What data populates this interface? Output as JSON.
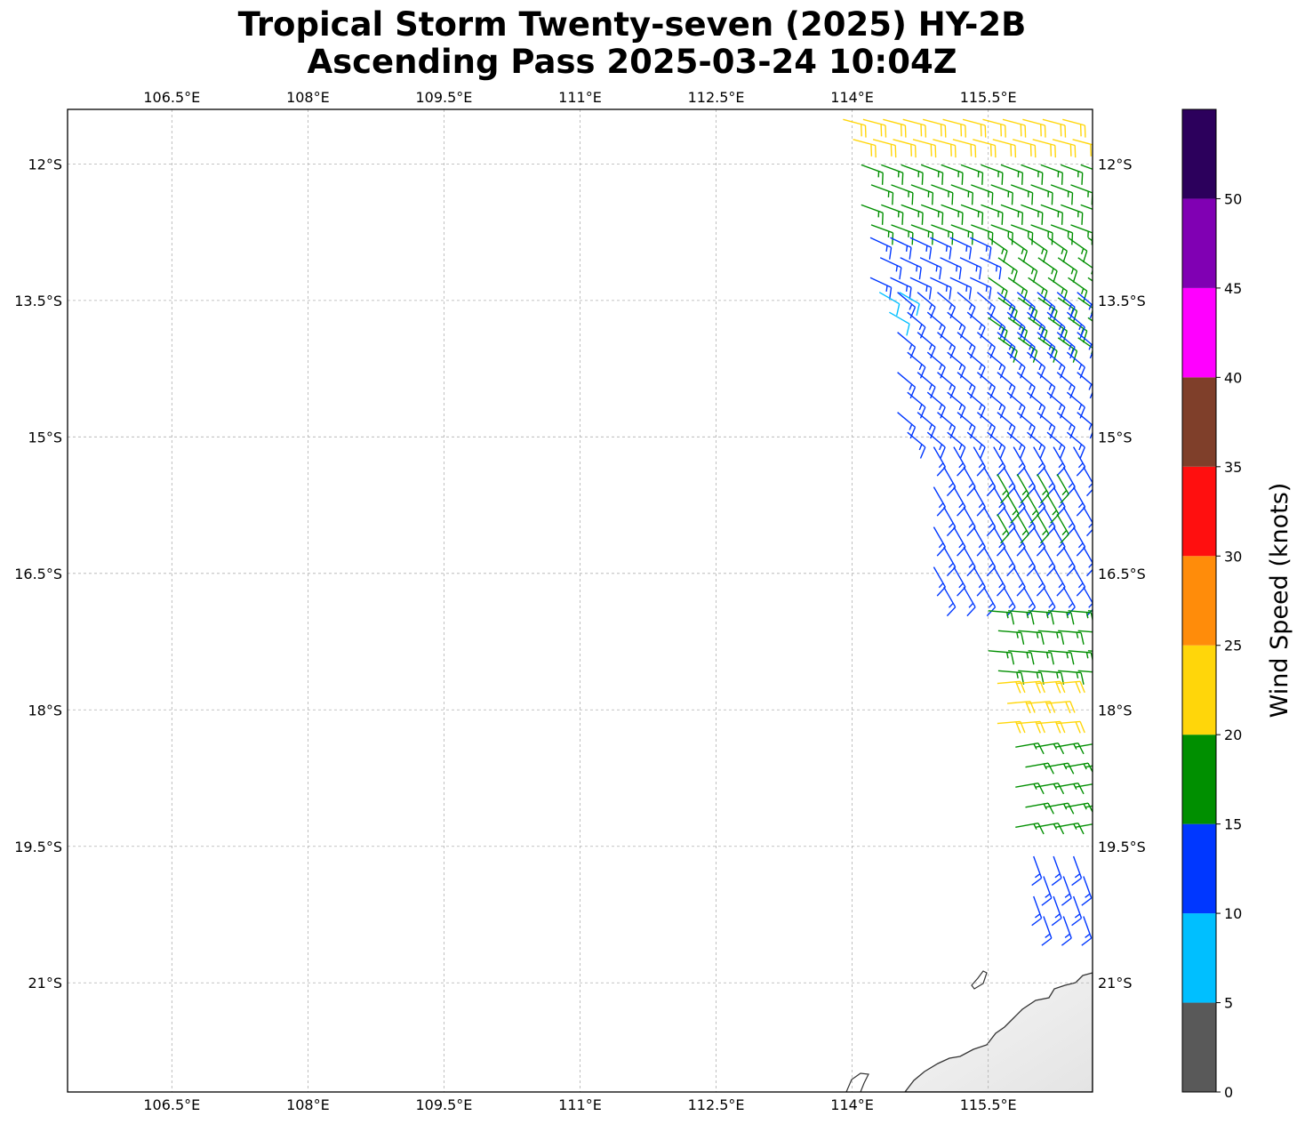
{
  "chart_data": {
    "type": "map-wind-barbs",
    "title": "Tropical Storm Twenty-seven (2025) HY-2B",
    "subtitle": "Ascending Pass 2025-03-24 10:04Z",
    "lon_range": [
      105.35,
      116.65
    ],
    "lat_range": [
      -22.2,
      -11.4
    ],
    "lon_ticks": [
      106.5,
      108,
      109.5,
      111,
      112.5,
      114,
      115.5
    ],
    "lon_tick_labels": [
      "106.5°E",
      "108°E",
      "109.5°E",
      "111°E",
      "112.5°E",
      "114°E",
      "115.5°E"
    ],
    "lat_ticks": [
      -12,
      -13.5,
      -15,
      -16.5,
      -18,
      -19.5,
      -21
    ],
    "lat_tick_labels": [
      "12°S",
      "13.5°S",
      "15°S",
      "16.5°S",
      "18°S",
      "19.5°S",
      "21°S"
    ],
    "grid": true,
    "colorbar": {
      "label": "Wind Speed (knots)",
      "bounds": [
        0,
        5,
        10,
        15,
        20,
        25,
        30,
        35,
        40,
        45,
        50,
        55
      ],
      "tick_labels": [
        "0",
        "5",
        "10",
        "15",
        "20",
        "25",
        "30",
        "35",
        "40",
        "45",
        "50"
      ],
      "colors": [
        "#595959",
        "#00bfff",
        "#0037ff",
        "#008f00",
        "#ffd60a",
        "#ff8c0a",
        "#ff0f0f",
        "#7f3f2a",
        "#ff00ff",
        "#8000b3",
        "#2c005c"
      ]
    },
    "wind_bands": [
      {
        "lat_from": -11.4,
        "lat_to": -11.9,
        "speed_kt": 22,
        "dir_from_deg": 105,
        "lon_min": 113.9,
        "lon_max": 116.5
      },
      {
        "lat_from": -11.9,
        "lat_to": -12.7,
        "speed_kt": 17,
        "dir_from_deg": 110,
        "lon_min": 114.1,
        "lon_max": 116.6
      },
      {
        "lat_from": -12.7,
        "lat_to": -13.3,
        "speed_kt": 13,
        "dir_from_deg": 115,
        "lon_min": 114.2,
        "lon_max": 115.5
      },
      {
        "lat_from": -12.7,
        "lat_to": -14.0,
        "speed_kt": 17,
        "dir_from_deg": 125,
        "lon_min": 115.5,
        "lon_max": 116.6
      },
      {
        "lat_from": -13.3,
        "lat_to": -13.7,
        "speed_kt": 8,
        "dir_from_deg": 120,
        "lon_min": 114.3,
        "lon_max": 114.6
      },
      {
        "lat_from": -13.3,
        "lat_to": -15.0,
        "speed_kt": 13,
        "dir_from_deg": 130,
        "lon_min": 114.5,
        "lon_max": 116.5
      },
      {
        "lat_from": -15.0,
        "lat_to": -16.8,
        "speed_kt": 13,
        "dir_from_deg": 150,
        "lon_min": 114.9,
        "lon_max": 116.6
      },
      {
        "lat_from": -15.3,
        "lat_to": -15.9,
        "speed_kt": 17,
        "dir_from_deg": 150,
        "lon_min": 115.6,
        "lon_max": 116.3
      },
      {
        "lat_from": -16.8,
        "lat_to": -17.6,
        "speed_kt": 17,
        "dir_from_deg": 95,
        "lon_min": 115.5,
        "lon_max": 116.6
      },
      {
        "lat_from": -17.6,
        "lat_to": -18.3,
        "speed_kt": 22,
        "dir_from_deg": 85,
        "lon_min": 115.6,
        "lon_max": 116.3
      },
      {
        "lat_from": -18.3,
        "lat_to": -19.5,
        "speed_kt": 17,
        "dir_from_deg": 80,
        "lon_min": 115.8,
        "lon_max": 116.6
      },
      {
        "lat_from": -19.5,
        "lat_to": -20.4,
        "speed_kt": 13,
        "dir_from_deg": 160,
        "lon_min": 116.0,
        "lon_max": 116.6
      }
    ],
    "land": "Western Australia coastline (lower right)"
  }
}
